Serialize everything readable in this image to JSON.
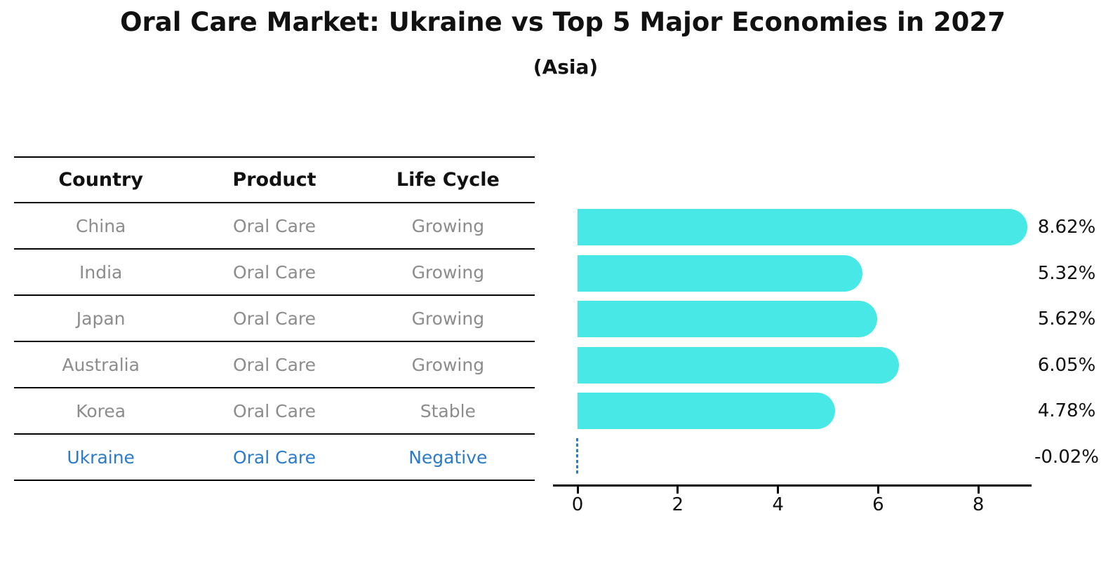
{
  "title": "Oral Care Market: Ukraine vs Top 5 Major Economies in 2027",
  "subtitle": "(Asia)",
  "table": {
    "headers": [
      "Country",
      "Product",
      "Life Cycle"
    ],
    "rows": [
      {
        "country": "China",
        "product": "Oral Care",
        "life_cycle": "Growing",
        "highlight": false
      },
      {
        "country": "India",
        "product": "Oral Care",
        "life_cycle": "Growing",
        "highlight": false
      },
      {
        "country": "Japan",
        "product": "Oral Care",
        "life_cycle": "Growing",
        "highlight": false
      },
      {
        "country": "Australia",
        "product": "Oral Care",
        "life_cycle": "Growing",
        "highlight": false
      },
      {
        "country": "Korea",
        "product": "Oral Care",
        "life_cycle": "Stable",
        "highlight": false
      },
      {
        "country": "Ukraine",
        "product": "Oral Care",
        "life_cycle": "Negative",
        "highlight": true
      }
    ]
  },
  "chart_data": {
    "type": "bar",
    "orientation": "horizontal",
    "title": "Oral Care Market: Ukraine vs Top 5 Major Economies in 2027",
    "subtitle": "(Asia)",
    "categories": [
      "China",
      "India",
      "Japan",
      "Australia",
      "Korea",
      "Ukraine"
    ],
    "values": [
      8.62,
      5.32,
      5.62,
      6.05,
      4.78,
      -0.02
    ],
    "value_labels": [
      "8.62%",
      "5.32%",
      "5.62%",
      "6.05%",
      "4.78%",
      "-0.02%"
    ],
    "x_ticks": [
      "0",
      "2",
      "4",
      "6",
      "8"
    ],
    "xlim": [
      -0.5,
      9.05
    ],
    "grid": false,
    "legend": "none",
    "highlight_index": 5,
    "highlight_bar_style": "dashed-zero-line"
  },
  "colors": {
    "bar": "#48E8E6",
    "highlight": "#2B7BC9",
    "muted_text": "#8C8C8C",
    "text": "#111111",
    "axis": "#000000"
  }
}
